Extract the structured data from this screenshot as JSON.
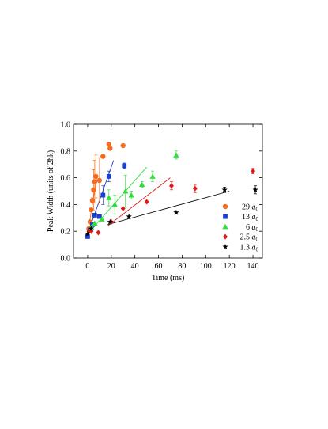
{
  "chart_data": {
    "type": "scatter",
    "xlabel": "Time (ms)",
    "ylabel": "Peak Width (units of 2ħk)",
    "xlim": [
      -12,
      148
    ],
    "ylim": [
      0.0,
      1.0
    ],
    "x_ticks": [
      0,
      20,
      40,
      60,
      80,
      100,
      120,
      140
    ],
    "y_ticks": [
      0.0,
      0.2,
      0.4,
      0.6,
      0.8,
      1.0
    ],
    "x_tick_labels": [
      "0",
      "20",
      "40",
      "60",
      "80",
      "100",
      "120",
      "140"
    ],
    "y_tick_labels": [
      "0.0",
      "0.2",
      "0.4",
      "0.6",
      "0.8",
      "1.0"
    ],
    "grid": false,
    "legend_position": "right",
    "series": [
      {
        "name": "29 a0",
        "legend_value": "29",
        "legend_unit": "a",
        "legend_sub": "0",
        "color": "#f26d21",
        "marker": "circle",
        "points": [
          {
            "x": 1,
            "y": 0.22,
            "err": 0.0
          },
          {
            "x": 2,
            "y": 0.27,
            "err": 0.0
          },
          {
            "x": 3,
            "y": 0.36,
            "err": 0.0
          },
          {
            "x": 4,
            "y": 0.43,
            "err": 0.02
          },
          {
            "x": 5,
            "y": 0.51,
            "err": 0.15
          },
          {
            "x": 6,
            "y": 0.57,
            "err": 0.16
          },
          {
            "x": 7,
            "y": 0.61,
            "err": 0.16
          },
          {
            "x": 10,
            "y": 0.58,
            "err": 0.17
          },
          {
            "x": 13,
            "y": 0.76,
            "err": 0.0
          },
          {
            "x": 18,
            "y": 0.85,
            "err": 0.0
          },
          {
            "x": 19,
            "y": 0.82,
            "err": 0.0
          },
          {
            "x": 30,
            "y": 0.84,
            "err": 0.0
          }
        ],
        "fit": [
          [
            0,
            0.18
          ],
          [
            8,
            0.62
          ]
        ]
      },
      {
        "name": "13 a0",
        "legend_value": "13",
        "legend_unit": "a",
        "legend_sub": "0",
        "color": "#1a3fd0",
        "marker": "square",
        "points": [
          {
            "x": 0,
            "y": 0.16,
            "err": 0.0
          },
          {
            "x": 2,
            "y": 0.21,
            "err": 0.0
          },
          {
            "x": 4,
            "y": 0.25,
            "err": 0.0
          },
          {
            "x": 6,
            "y": 0.32,
            "err": 0.0
          },
          {
            "x": 10,
            "y": 0.31,
            "err": 0.0
          },
          {
            "x": 13,
            "y": 0.47,
            "err": 0.07
          },
          {
            "x": 18,
            "y": 0.61,
            "err": 0.04
          },
          {
            "x": 31,
            "y": 0.69,
            "err": 0.02
          }
        ],
        "fit": [
          [
            0,
            0.18
          ],
          [
            22,
            0.73
          ]
        ]
      },
      {
        "name": "6 a0",
        "legend_value": "6",
        "legend_unit": "a",
        "legend_sub": "0",
        "color": "#2ee03a",
        "marker": "triangle",
        "points": [
          {
            "x": 3,
            "y": 0.23,
            "err": 0.0
          },
          {
            "x": 6,
            "y": 0.26,
            "err": 0.0
          },
          {
            "x": 12,
            "y": 0.29,
            "err": 0.0
          },
          {
            "x": 18,
            "y": 0.45,
            "err": 0.06
          },
          {
            "x": 23,
            "y": 0.4,
            "err": 0.07
          },
          {
            "x": 32,
            "y": 0.5,
            "err": 0.12
          },
          {
            "x": 37,
            "y": 0.47,
            "err": 0.03
          },
          {
            "x": 46,
            "y": 0.55,
            "err": 0.02
          },
          {
            "x": 55,
            "y": 0.61,
            "err": 0.04
          },
          {
            "x": 75,
            "y": 0.77,
            "err": 0.03
          }
        ],
        "fit": [
          [
            2,
            0.2
          ],
          [
            50,
            0.68
          ]
        ]
      },
      {
        "name": "2.5 a0",
        "legend_value": "2.5",
        "legend_unit": "a",
        "legend_sub": "0",
        "color": "#e01b1b",
        "marker": "diamond",
        "points": [
          {
            "x": 1,
            "y": 0.2,
            "err": 0.0
          },
          {
            "x": 3,
            "y": 0.2,
            "err": 0.0
          },
          {
            "x": 9,
            "y": 0.19,
            "err": 0.0
          },
          {
            "x": 20,
            "y": 0.27,
            "err": 0.0
          },
          {
            "x": 30,
            "y": 0.37,
            "err": 0.0
          },
          {
            "x": 50,
            "y": 0.42,
            "err": 0.0
          },
          {
            "x": 71,
            "y": 0.54,
            "err": 0.03
          },
          {
            "x": 91,
            "y": 0.52,
            "err": 0.03
          },
          {
            "x": 140,
            "y": 0.65,
            "err": 0.02
          }
        ],
        "fit": [
          [
            17,
            0.24
          ],
          [
            70,
            0.6
          ]
        ]
      },
      {
        "name": "1.3 a0",
        "legend_value": "1.3",
        "legend_unit": "a",
        "legend_sub": "0",
        "color": "#000000",
        "marker": "star",
        "points": [
          {
            "x": 0,
            "y": 0.18,
            "err": 0.0
          },
          {
            "x": 3,
            "y": 0.22,
            "err": 0.0
          },
          {
            "x": 19,
            "y": 0.27,
            "err": 0.0
          },
          {
            "x": 35,
            "y": 0.31,
            "err": 0.0
          },
          {
            "x": 75,
            "y": 0.34,
            "err": 0.01
          },
          {
            "x": 116,
            "y": 0.51,
            "err": 0.02
          },
          {
            "x": 142,
            "y": 0.51,
            "err": 0.03
          }
        ],
        "fit": [
          [
            17,
            0.25
          ],
          [
            120,
            0.5
          ]
        ]
      }
    ]
  }
}
